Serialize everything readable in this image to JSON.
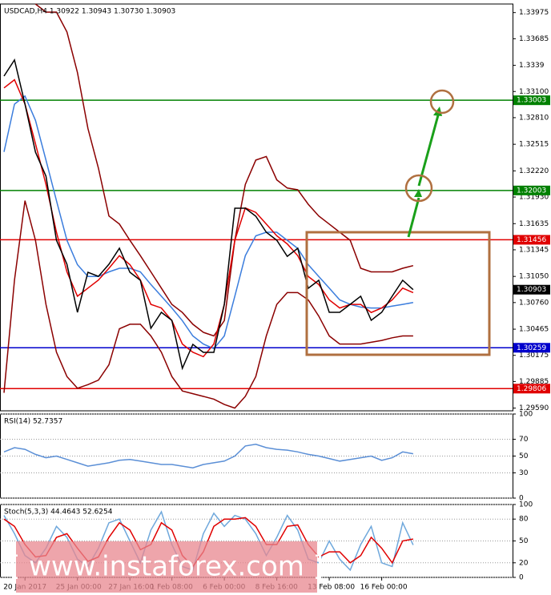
{
  "chart_data": [
    {
      "type": "line",
      "title": "USDCAD,H4  1.30922 1.30943 1.30730 1.30903",
      "categories": [
        null,
        null,
        "20 Jan 2017",
        null,
        null,
        null,
        null,
        "25 Jan 00:00",
        null,
        null,
        null,
        null,
        "27 Jan 16:00",
        null,
        null,
        null,
        "1 Feb 08:00",
        null,
        null,
        null,
        null,
        "6 Feb 00:00",
        null,
        null,
        null,
        null,
        "8 Feb 16:00",
        null,
        null,
        null,
        null,
        "13 Feb 08:00",
        null,
        null,
        null,
        null,
        "16 Feb 00:00",
        null,
        null,
        null
      ],
      "series": [
        {
          "color": "#8b0000",
          "values": [
            null,
            null,
            null,
            1.3407,
            1.3398,
            1.3398,
            1.3376,
            1.3331,
            1.3269,
            1.3225,
            1.3172,
            1.3163,
            1.3145,
            1.3128,
            1.311,
            1.3092,
            1.3074,
            1.3065,
            1.3052,
            1.3043,
            1.3039,
            1.3056,
            1.3145,
            1.3207,
            1.3234,
            1.3238,
            1.3212,
            1.3203,
            1.3201,
            1.3185,
            1.3172,
            1.3163,
            1.3154,
            1.3145,
            1.3114,
            1.311,
            1.311,
            1.311,
            1.3114,
            1.3117
          ]
        },
        {
          "color": "#8b0000",
          "values": [
            1.2976,
            1.3101,
            1.3189,
            1.3145,
            1.3074,
            1.3021,
            1.2994,
            1.2981,
            1.2985,
            1.299,
            1.3007,
            1.3047,
            1.3052,
            1.3052,
            1.3039,
            1.3021,
            1.2994,
            1.2978,
            1.2975,
            1.2972,
            1.2969,
            1.2963,
            1.2959,
            1.2972,
            1.2994,
            1.3039,
            1.3074,
            1.3087,
            1.3087,
            1.3079,
            1.3061,
            1.3039,
            1.303,
            1.303,
            1.303,
            1.3032,
            1.3034,
            1.3037,
            1.3039,
            1.3039
          ]
        },
        {
          "color": "#3b7ddd",
          "values": [
            1.3243,
            1.3296,
            1.3305,
            1.3278,
            1.3234,
            1.3189,
            1.3145,
            1.3118,
            1.3105,
            1.3105,
            1.311,
            1.3114,
            1.3114,
            1.311,
            1.3096,
            1.3083,
            1.307,
            1.3056,
            1.3039,
            1.303,
            1.3025,
            1.3039,
            1.3083,
            1.3128,
            1.315,
            1.3154,
            1.3154,
            1.3145,
            1.3136,
            1.3118,
            1.3105,
            1.3092,
            1.3079,
            1.3074,
            1.3071,
            1.307,
            1.307,
            1.3072,
            1.3074,
            1.3076
          ]
        },
        {
          "color": "#e00000",
          "values": [
            1.3314,
            1.3323,
            1.3296,
            1.3252,
            1.3207,
            1.3154,
            1.311,
            1.3083,
            1.3092,
            1.3101,
            1.3114,
            1.3128,
            1.3118,
            1.3101,
            1.3074,
            1.307,
            1.3056,
            1.303,
            1.3021,
            1.3016,
            1.303,
            1.3074,
            1.3145,
            1.3181,
            1.3176,
            1.3163,
            1.315,
            1.3141,
            1.3128,
            1.3105,
            1.3096,
            1.3079,
            1.307,
            1.3074,
            1.3074,
            1.3065,
            1.307,
            1.3079,
            1.3092,
            1.3087
          ]
        },
        {
          "color": "#000000",
          "values": [
            1.33271,
            1.33449,
            1.3296,
            1.32428,
            1.32161,
            1.31451,
            1.31185,
            1.30652,
            1.31096,
            1.31051,
            1.31185,
            1.31362,
            1.31096,
            1.31007,
            1.30474,
            1.30652,
            1.30563,
            1.30031,
            1.30297,
            1.30208,
            1.30208,
            1.30741,
            1.31806,
            1.31806,
            1.31717,
            1.3154,
            1.31451,
            1.31273,
            1.31362,
            1.30918,
            1.31007,
            1.30652,
            1.30652,
            1.30741,
            1.3083,
            1.30563,
            1.30652,
            1.3083,
            1.31007,
            1.30903
          ]
        }
      ],
      "ylim": [
        1.2956,
        1.3407
      ],
      "yticks": [
        1.33975,
        1.33685,
        1.3339,
        {
          "value": 1.331,
          "label": "1.33100"
        },
        {
          "value": 1.3281,
          "label": "1.32810"
        },
        1.32515,
        {
          "value": 1.3222,
          "label": "1.32220"
        },
        {
          "value": 1.3193,
          "label": "1.31930"
        },
        1.31635,
        1.31345,
        {
          "value": 1.3105,
          "label": "1.31050"
        },
        {
          "value": 1.3076,
          "label": "1.30760"
        },
        1.30465,
        1.30175,
        1.29885,
        {
          "value": 1.2959,
          "label": "1.29590"
        }
      ],
      "grid": false,
      "levels": [
        {
          "value": 1.33003,
          "color": "#008000"
        },
        {
          "value": 1.32003,
          "color": "#008000"
        },
        {
          "value": 1.31456,
          "color": "#e00000"
        },
        {
          "value": 1.30259,
          "color": "#0000cc"
        },
        {
          "value": 1.29806,
          "color": "#e00000"
        }
      ],
      "last_price": 1.30903
    },
    {
      "type": "line",
      "title": "RSI(14) 52.7357",
      "series": [
        {
          "color": "#5b8fd6",
          "values": [
            55,
            60,
            58,
            52,
            48,
            50,
            46,
            42,
            38,
            40,
            42,
            45,
            46,
            44,
            42,
            40,
            40,
            38,
            36,
            40,
            42,
            44,
            50,
            62,
            64,
            60,
            58,
            57,
            55,
            52,
            50,
            47,
            44,
            46,
            48,
            50,
            45,
            48,
            55,
            52.7357
          ]
        }
      ],
      "ylim": [
        0,
        100
      ],
      "yticks": [
        0,
        30,
        50,
        70,
        100
      ],
      "grid": true
    },
    {
      "type": "line",
      "title": "Stoch(5,3,3) 44.4643 52.6254",
      "series": [
        {
          "color": "#6fa8dc",
          "values": [
            85,
            60,
            30,
            20,
            40,
            70,
            55,
            25,
            15,
            40,
            75,
            80,
            50,
            20,
            65,
            90,
            45,
            15,
            10,
            60,
            88,
            70,
            85,
            80,
            60,
            30,
            55,
            85,
            65,
            25,
            20,
            50,
            25,
            10,
            45,
            70,
            20,
            15,
            75,
            44.4643
          ]
        },
        {
          "color": "#e00000",
          "values": [
            80,
            70,
            45,
            28,
            30,
            55,
            60,
            40,
            22,
            28,
            55,
            75,
            65,
            38,
            45,
            75,
            65,
            30,
            15,
            35,
            70,
            80,
            80,
            82,
            70,
            45,
            45,
            70,
            72,
            45,
            28,
            35,
            35,
            20,
            30,
            55,
            40,
            20,
            50,
            52.6254
          ]
        }
      ],
      "ylim": [
        0,
        100
      ],
      "yticks": [
        0,
        20,
        50,
        80,
        100
      ],
      "grid": true
    }
  ],
  "watermark": "[ www.instaforex.com ]"
}
